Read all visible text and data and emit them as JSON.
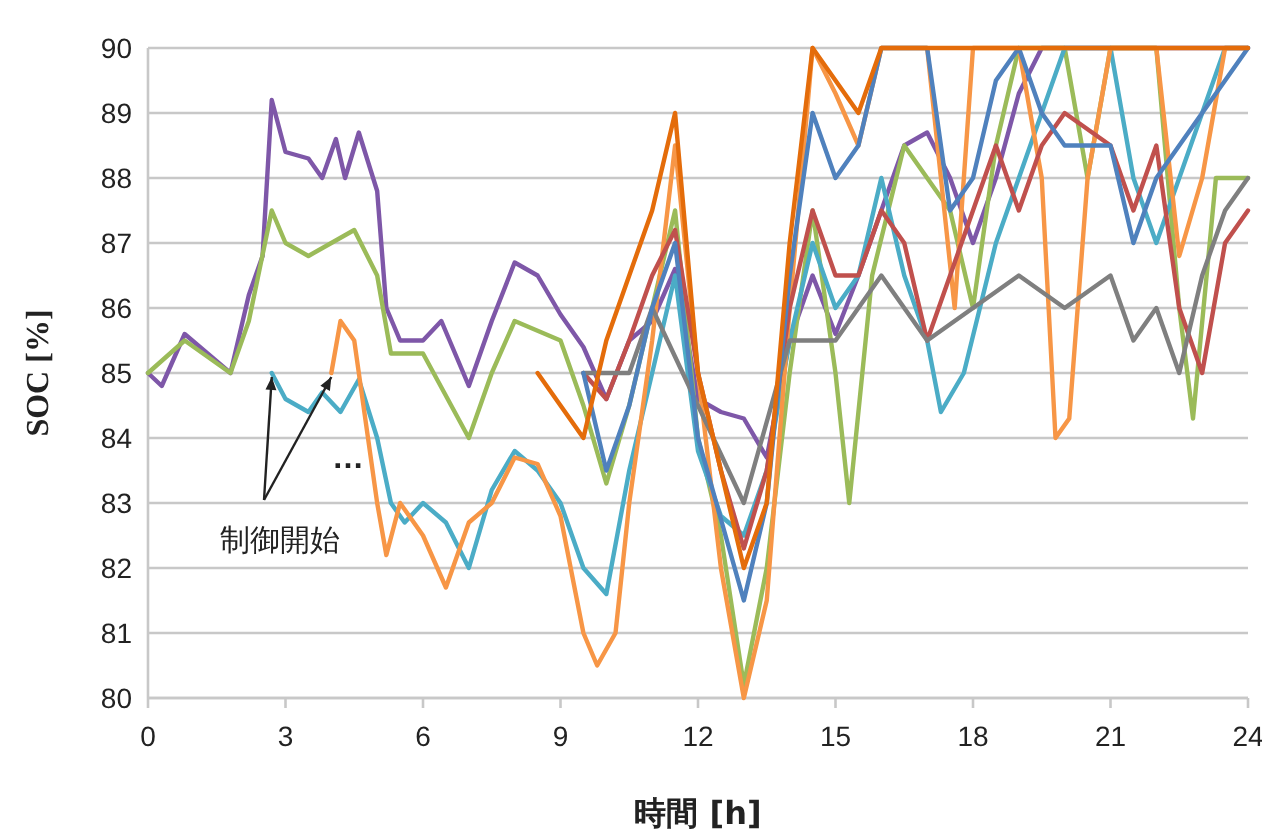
{
  "chart_data": {
    "type": "line",
    "xlabel": "時間 [h]",
    "ylabel": "SOC [%]",
    "xlim": [
      0,
      24
    ],
    "xticks": [
      0,
      3,
      6,
      9,
      12,
      15,
      18,
      21,
      24
    ],
    "ylim": [
      80,
      90
    ],
    "yticks": [
      80,
      81,
      82,
      83,
      84,
      85,
      86,
      87,
      88,
      89,
      90
    ],
    "grid": "y",
    "marker": "none",
    "line_style": "solid",
    "annotations": [
      {
        "text": "制御開始",
        "x": 2.7,
        "y": 85
      },
      "…"
    ],
    "series": [
      {
        "color": "#7e57a8",
        "x": [
          0,
          0.3,
          0.8,
          1.3,
          1.8,
          2.2,
          2.5,
          2.7,
          3,
          3.5,
          3.8,
          4.1,
          4.3,
          4.6,
          5,
          5.2,
          5.5,
          6,
          6.4,
          7,
          7.5,
          8,
          8.5,
          9,
          9.5,
          10,
          10.5,
          11,
          11.5,
          12,
          12.5,
          13,
          13.5,
          14,
          14.5,
          15,
          15.5,
          16,
          16.5,
          17,
          17.5,
          18,
          18.5,
          19,
          19.5,
          24
        ],
        "values": [
          85,
          84.8,
          85.6,
          85.3,
          85,
          86.2,
          86.8,
          89.2,
          88.4,
          88.3,
          88,
          88.6,
          88,
          88.7,
          87.8,
          86,
          85.5,
          85.5,
          85.8,
          84.8,
          85.8,
          86.7,
          86.5,
          85.9,
          85.4,
          84.6,
          85.5,
          85.8,
          86.6,
          84.6,
          84.4,
          84.3,
          83.7,
          85.5,
          86.5,
          85.6,
          86.5,
          87.5,
          88.5,
          88.7,
          88,
          87,
          88,
          89.3,
          90,
          90
        ]
      },
      {
        "color": "#9bbb59",
        "x": [
          0,
          0.8,
          1.8,
          2.2,
          2.7,
          3,
          3.5,
          4,
          4.5,
          5,
          5.3,
          6,
          7,
          7.5,
          8,
          9,
          9.5,
          10,
          10.5,
          11,
          11.5,
          12,
          12.5,
          13,
          13.5,
          14,
          14.5,
          15,
          15.3,
          15.8,
          16.5,
          17,
          17.5,
          18,
          18.5,
          19,
          20,
          20.5,
          21,
          22,
          22.5,
          22.8,
          23.3,
          24
        ],
        "values": [
          85,
          85.5,
          85,
          85.8,
          87.5,
          87,
          86.8,
          87,
          87.2,
          86.5,
          85.3,
          85.3,
          84,
          85,
          85.8,
          85.5,
          84.5,
          83.3,
          84.5,
          86,
          87.5,
          84,
          82.5,
          80.2,
          82,
          85,
          87.5,
          85,
          83,
          86.5,
          88.5,
          88,
          87.5,
          86,
          88.5,
          90,
          90,
          88,
          90,
          90,
          86,
          84.3,
          88,
          88
        ]
      },
      {
        "color": "#4bacc6",
        "x": [
          2.7,
          3,
          3.5,
          3.8,
          4.2,
          4.6,
          5,
          5.3,
          5.6,
          6,
          6.5,
          7,
          7.5,
          8,
          8.5,
          9,
          9.5,
          10,
          10.5,
          11,
          11.5,
          12,
          12.5,
          13,
          13.5,
          14,
          14.5,
          15,
          15.5,
          16,
          16.5,
          17,
          17.3,
          17.8,
          18.5,
          19,
          19.5,
          20,
          21,
          21.5,
          22,
          22.5,
          23,
          23.5,
          24
        ],
        "values": [
          85,
          84.6,
          84.4,
          84.7,
          84.4,
          84.9,
          84,
          83,
          82.7,
          83,
          82.7,
          82,
          83.2,
          83.8,
          83.5,
          83,
          82,
          81.6,
          83.5,
          85,
          86.5,
          83.8,
          82.8,
          82.5,
          83.5,
          85.5,
          87,
          86,
          86.5,
          88,
          86.5,
          85.5,
          84.4,
          85,
          87,
          88,
          89,
          90,
          90,
          88,
          87,
          88,
          89,
          90,
          90
        ]
      },
      {
        "color": "#f79646",
        "x": [
          4,
          4.2,
          4.5,
          4.7,
          5,
          5.2,
          5.5,
          6,
          6.5,
          7,
          7.5,
          8,
          8.5,
          9,
          9.5,
          9.8,
          10.2,
          10.5,
          11,
          11.5,
          12,
          12.5,
          13,
          13.5,
          14,
          14.5,
          15,
          15.5,
          16,
          17,
          17.3,
          17.6,
          18,
          19,
          19.5,
          19.8,
          20.1,
          20.5,
          21,
          22,
          22.5,
          23,
          23.5,
          24
        ],
        "values": [
          85,
          85.8,
          85.5,
          84.5,
          83,
          82.2,
          83,
          82.5,
          81.7,
          82.7,
          83,
          83.7,
          83.6,
          82.8,
          81,
          80.5,
          81,
          83,
          85.5,
          88.5,
          85,
          82,
          80,
          81.5,
          86,
          90,
          89.3,
          88.5,
          90,
          90,
          88,
          86,
          90,
          90,
          88,
          84,
          84.3,
          88,
          90,
          90,
          86.8,
          88,
          90,
          90
        ]
      },
      {
        "color": "#c0504d",
        "x": [
          9.5,
          10,
          10.5,
          11,
          11.5,
          12,
          12.5,
          13,
          13.5,
          14,
          14.5,
          15,
          15.5,
          16,
          16.5,
          17,
          17.5,
          18,
          18.5,
          19,
          19.5,
          20,
          21,
          21.5,
          22,
          22.5,
          23,
          23.5,
          24
        ],
        "values": [
          85,
          84.6,
          85.5,
          86.5,
          87.2,
          85,
          83.5,
          82.3,
          83.5,
          86,
          87.5,
          86.5,
          86.5,
          87.5,
          87,
          85.5,
          86.5,
          87.5,
          88.5,
          87.5,
          88.5,
          89,
          88.5,
          87.5,
          88.5,
          86,
          85,
          87,
          87.5
        ]
      },
      {
        "color": "#7f7f7f",
        "x": [
          9.5,
          10.5,
          11,
          12,
          13,
          14,
          15,
          16,
          17,
          18,
          19,
          20,
          21,
          21.5,
          22,
          22.5,
          23,
          23.5,
          24
        ],
        "values": [
          85,
          85,
          86,
          84.5,
          83,
          85.5,
          85.5,
          86.5,
          85.5,
          86,
          86.5,
          86,
          86.5,
          85.5,
          86,
          85,
          86.5,
          87.5,
          88
        ]
      },
      {
        "color": "#4f81bd",
        "x": [
          9.5,
          10,
          10.5,
          11,
          11.5,
          12,
          13,
          13.5,
          14,
          14.5,
          15,
          15.5,
          16,
          17,
          17.5,
          18,
          18.5,
          19,
          19.5,
          20,
          21,
          21.5,
          22,
          23,
          24
        ],
        "values": [
          85,
          83.5,
          84.5,
          86,
          87,
          84,
          81.5,
          83,
          86.5,
          89,
          88,
          88.5,
          90,
          90,
          87.5,
          88,
          89.5,
          90,
          89,
          88.5,
          88.5,
          87,
          88,
          89,
          90
        ]
      },
      {
        "color": "#e46c0a",
        "x": [
          8.5,
          9,
          9.5,
          10,
          10.5,
          11,
          11.5,
          12,
          13,
          13.5,
          14,
          14.5,
          15,
          15.5,
          16,
          24
        ],
        "values": [
          85,
          84.5,
          84,
          85.5,
          86.5,
          87.5,
          89,
          85,
          82,
          83,
          87,
          90,
          89.5,
          89,
          90,
          90
        ]
      }
    ]
  }
}
